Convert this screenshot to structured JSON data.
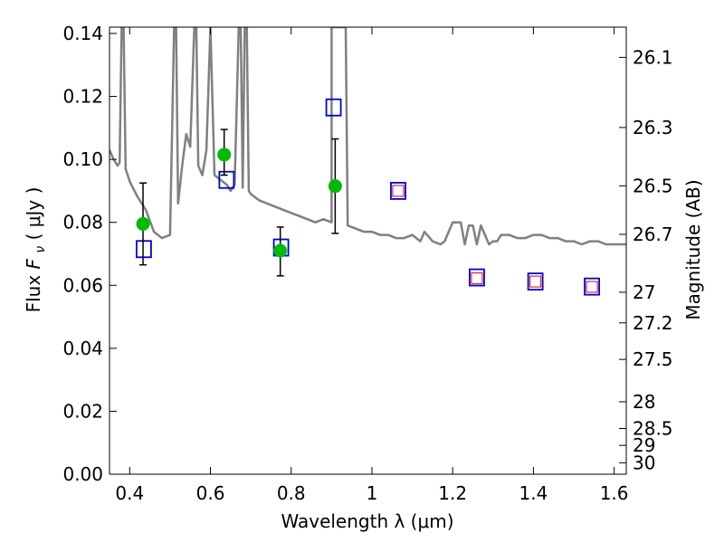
{
  "chart_data": {
    "type": "scatter",
    "xlabel": "Wavelength  λ (μm)",
    "ylabel": "Flux  F_ν  ( μJy )",
    "ylabel_parts": {
      "prefix": "Flux  ",
      "symbol": "F",
      "subscript": "ν",
      "suffix": "  ( μJy )"
    },
    "y2label": "Magnitude (AB)",
    "xlim": [
      0.35,
      1.63
    ],
    "ylim": [
      0.0,
      0.142
    ],
    "x_ticks": [
      0.4,
      0.6,
      0.8,
      1.0,
      1.2,
      1.4,
      1.6
    ],
    "x_tick_labels": [
      "0.4",
      "0.6",
      "0.8",
      "1",
      "1.2",
      "1.4",
      "1.6"
    ],
    "y_ticks": [
      0.0,
      0.02,
      0.04,
      0.06,
      0.08,
      0.1,
      0.12,
      0.14
    ],
    "y_tick_labels": [
      "0.00",
      "0.02",
      "0.04",
      "0.06",
      "0.08",
      "0.10",
      "0.12",
      "0.14"
    ],
    "y2_ticks": [
      "26.1",
      "26.3",
      "26.5",
      "26.7",
      "27",
      "27.2",
      "27.5",
      "28",
      "28.5",
      "29",
      "30"
    ],
    "grid": false,
    "colors": {
      "sed_line": "#808080",
      "observed": "#00bb00",
      "model": "#0000dd",
      "upper": "#dd0000",
      "errorbar": "#000000"
    },
    "series": [
      {
        "kind": "model_spectrum",
        "x": [
          0.35,
          0.36,
          0.37,
          0.375,
          0.38,
          0.385,
          0.39,
          0.4,
          0.42,
          0.44,
          0.46,
          0.48,
          0.5,
          0.51,
          0.515,
          0.52,
          0.53,
          0.54,
          0.55,
          0.56,
          0.565,
          0.57,
          0.58,
          0.59,
          0.6,
          0.6,
          0.61,
          0.62,
          0.63,
          0.64,
          0.65,
          0.66,
          0.67,
          0.675,
          0.68,
          0.685,
          0.69,
          0.695,
          0.7,
          0.72,
          0.74,
          0.76,
          0.78,
          0.8,
          0.82,
          0.84,
          0.86,
          0.88,
          0.9,
          0.9,
          0.92,
          0.93,
          0.935,
          0.94,
          0.96,
          0.98,
          1.0,
          1.02,
          1.04,
          1.06,
          1.08,
          1.1,
          1.12,
          1.13,
          1.15,
          1.17,
          1.18,
          1.2,
          1.22,
          1.23,
          1.24,
          1.25,
          1.26,
          1.27,
          1.28,
          1.29,
          1.3,
          1.31,
          1.32,
          1.34,
          1.36,
          1.38,
          1.4,
          1.42,
          1.44,
          1.46,
          1.48,
          1.5,
          1.52,
          1.54,
          1.56,
          1.58,
          1.6,
          1.63
        ],
        "y": [
          0.103,
          0.1,
          0.098,
          0.099,
          0.142,
          0.142,
          0.097,
          0.093,
          0.088,
          0.084,
          0.077,
          0.075,
          0.076,
          0.142,
          0.142,
          0.086,
          0.098,
          0.108,
          0.104,
          0.142,
          0.142,
          0.098,
          0.095,
          0.103,
          0.142,
          0.142,
          0.095,
          0.094,
          0.093,
          0.092,
          0.09,
          0.092,
          0.142,
          0.142,
          0.091,
          0.142,
          0.142,
          0.09,
          0.089,
          0.087,
          0.086,
          0.085,
          0.084,
          0.083,
          0.082,
          0.081,
          0.08,
          0.081,
          0.08,
          0.142,
          0.142,
          0.142,
          0.142,
          0.079,
          0.078,
          0.077,
          0.077,
          0.076,
          0.076,
          0.075,
          0.075,
          0.076,
          0.074,
          0.077,
          0.074,
          0.073,
          0.074,
          0.08,
          0.08,
          0.073,
          0.079,
          0.079,
          0.073,
          0.079,
          0.076,
          0.073,
          0.074,
          0.074,
          0.076,
          0.076,
          0.075,
          0.075,
          0.076,
          0.076,
          0.075,
          0.075,
          0.074,
          0.074,
          0.073,
          0.074,
          0.074,
          0.073,
          0.073,
          0.073
        ]
      },
      {
        "kind": "observed_with_errors",
        "x": [
          0.433,
          0.634,
          0.773,
          0.909
        ],
        "y": [
          0.0795,
          0.1015,
          0.071,
          0.0915
        ],
        "yerr_low": [
          0.0665,
          0.095,
          0.063,
          0.0765
        ],
        "yerr_high": [
          0.0925,
          0.1095,
          0.0785,
          0.1065
        ]
      },
      {
        "kind": "model_photometry_boxes",
        "x": [
          0.435,
          0.64,
          0.775,
          0.905,
          1.065,
          1.26,
          1.405,
          1.545
        ],
        "y": [
          0.0715,
          0.0935,
          0.072,
          0.1165,
          0.09,
          0.0625,
          0.0612,
          0.0596
        ]
      },
      {
        "kind": "upper_limit_boxes",
        "x": [
          1.065,
          1.26,
          1.405,
          1.545
        ],
        "y": [
          0.09,
          0.0622,
          0.0612,
          0.0595
        ]
      }
    ]
  }
}
